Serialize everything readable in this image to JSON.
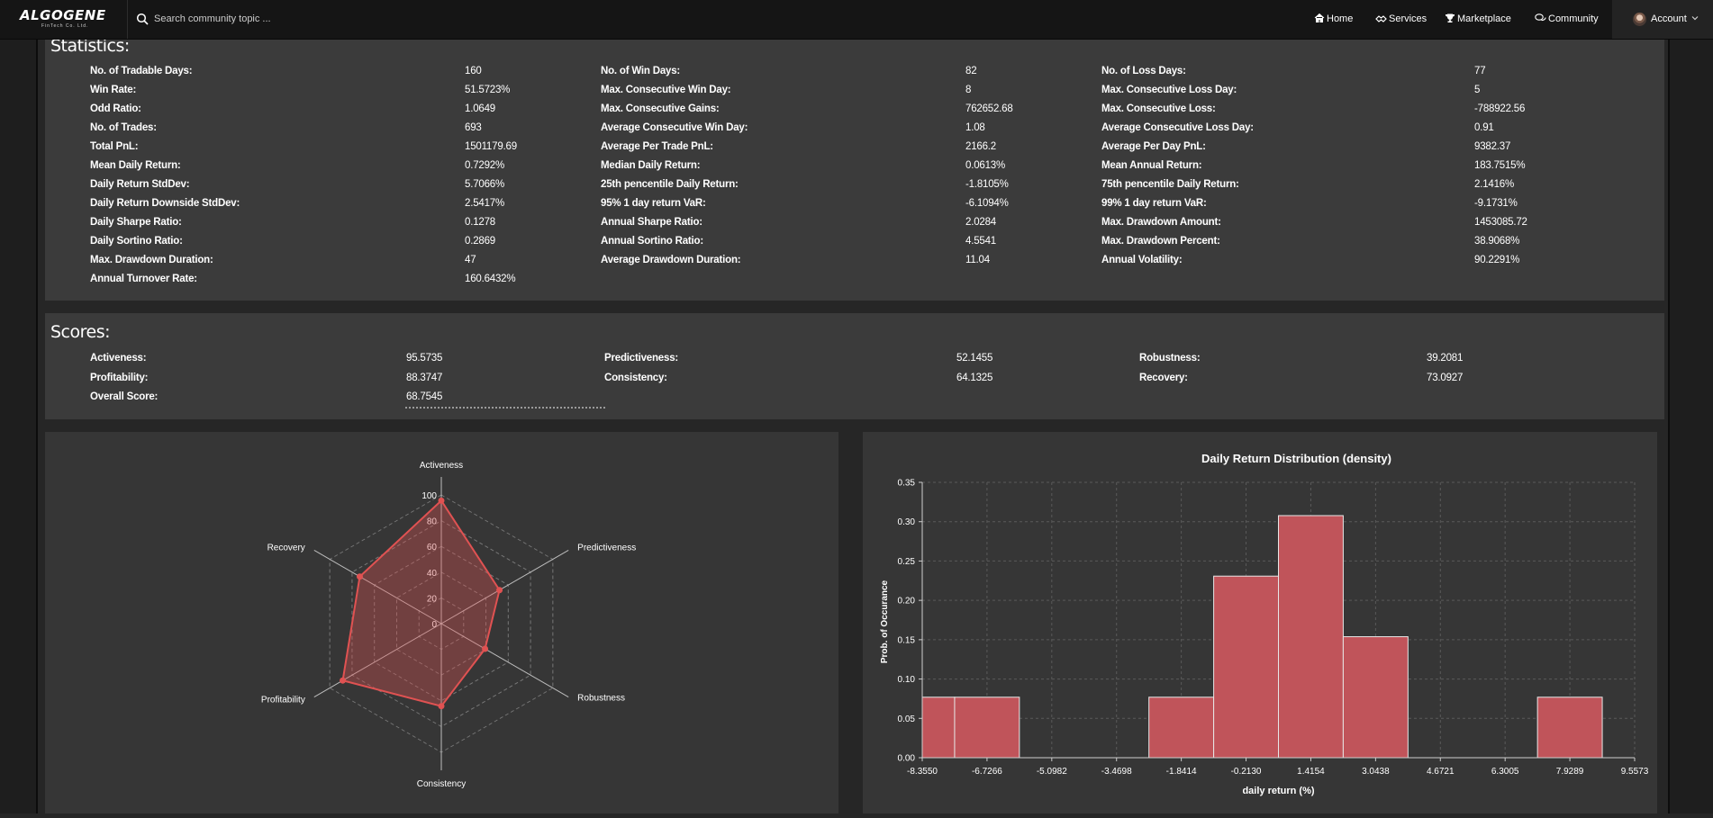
{
  "nav": {
    "logo": "ALGOGENE",
    "logo_subtitle": "FinTech Co. Ltd.",
    "search_placeholder": "Search community topic ...",
    "links": [
      {
        "label": "Home",
        "icon": "home-icon"
      },
      {
        "label": "Services",
        "icon": "services-icon"
      },
      {
        "label": "Marketplace",
        "icon": "trophy-icon"
      },
      {
        "label": "Community",
        "icon": "comments-icon"
      }
    ],
    "account_label": "Account"
  },
  "statistics": {
    "title": "Statistics:",
    "rows": [
      [
        [
          "No. of Tradable Days:",
          "160"
        ],
        [
          "No. of Win Days:",
          "82"
        ],
        [
          "No. of Loss Days:",
          "77"
        ]
      ],
      [
        [
          "Win Rate:",
          "51.5723%"
        ],
        [
          "Max. Consecutive Win Day:",
          "8"
        ],
        [
          "Max. Consecutive Loss Day:",
          "5"
        ]
      ],
      [
        [
          "Odd Ratio:",
          "1.0649"
        ],
        [
          "Max. Consecutive Gains:",
          "762652.68"
        ],
        [
          "Max. Consecutive Loss:",
          "-788922.56"
        ]
      ],
      [
        [
          "No. of Trades:",
          "693"
        ],
        [
          "Average Consecutive Win Day:",
          "1.08"
        ],
        [
          "Average Consecutive Loss Day:",
          "0.91"
        ]
      ],
      [
        [
          "Total PnL:",
          "1501179.69"
        ],
        [
          "Average Per Trade PnL:",
          "2166.2"
        ],
        [
          "Average Per Day PnL:",
          "9382.37"
        ]
      ],
      [
        [
          "Mean Daily Return:",
          "0.7292%"
        ],
        [
          "Median Daily Return:",
          "0.0613%"
        ],
        [
          "Mean Annual Return:",
          "183.7515%"
        ]
      ],
      [
        [
          "Daily Return StdDev:",
          "5.7066%"
        ],
        [
          "25th pencentile Daily Return:",
          "-1.8105%"
        ],
        [
          "75th pencentile Daily Return:",
          "2.1416%"
        ]
      ],
      [
        [
          "Daily Return Downside StdDev:",
          "2.5417%"
        ],
        [
          "95% 1 day return VaR:",
          "-6.1094%"
        ],
        [
          "99% 1 day return VaR:",
          "-9.1731%"
        ]
      ],
      [
        [
          "Daily Sharpe Ratio:",
          "0.1278"
        ],
        [
          "Annual Sharpe Ratio:",
          "2.0284"
        ],
        [
          "Max. Drawdown Amount:",
          "1453085.72"
        ]
      ],
      [
        [
          "Daily Sortino Ratio:",
          "0.2869"
        ],
        [
          "Annual Sortino Ratio:",
          "4.5541"
        ],
        [
          "Max. Drawdown Percent:",
          "38.9068%"
        ]
      ],
      [
        [
          "Max. Drawdown Duration:",
          "47"
        ],
        [
          "Average Drawdown Duration:",
          "11.04"
        ],
        [
          "Annual Volatility:",
          "90.2291%"
        ]
      ],
      [
        [
          "Annual Turnover Rate:",
          "160.6432%"
        ]
      ]
    ]
  },
  "scores": {
    "title": "Scores:",
    "rows": [
      [
        [
          "Activeness:",
          "95.5735"
        ],
        [
          "Predictiveness:",
          "52.1455"
        ],
        [
          "Robustness:",
          "39.2081"
        ]
      ],
      [
        [
          "Profitability:",
          "88.3747"
        ],
        [
          "Consistency:",
          "64.1325"
        ],
        [
          "Recovery:",
          "73.0927"
        ]
      ],
      [
        [
          "Overall Score:",
          "68.7545"
        ]
      ]
    ]
  },
  "chart_data": [
    {
      "type": "radar",
      "title": "",
      "axes": [
        "Activeness",
        "Predictiveness",
        "Robustness",
        "Consistency",
        "Profitability",
        "Recovery"
      ],
      "values": [
        95.5735,
        52.1455,
        39.2081,
        64.1325,
        88.3747,
        73.0927
      ],
      "rlim": [
        0,
        100
      ],
      "ticks": [
        "0",
        "20",
        "40",
        "60",
        "80",
        "100"
      ],
      "grid": true,
      "color": "#e05252"
    },
    {
      "type": "bar",
      "title": "Daily Return Distribution (density)",
      "xlabel": "daily return (%)",
      "ylabel": "Prob. of Occurance",
      "xlim": [
        -8.355,
        9.5573
      ],
      "ylim": [
        0,
        0.35
      ],
      "x_ticks": [
        "-8.3550",
        "-6.7266",
        "-5.0982",
        "-3.4698",
        "-1.8414",
        "-0.2130",
        "1.4154",
        "3.0438",
        "4.6721",
        "6.3005",
        "7.9289",
        "9.5573"
      ],
      "y_ticks": [
        "0.00",
        "0.05",
        "0.10",
        "0.15",
        "0.20",
        "0.25",
        "0.30",
        "0.35"
      ],
      "bins": [
        {
          "x0": -8.355,
          "x1": -7.5408,
          "y": 0.0769
        },
        {
          "x0": -7.5408,
          "x1": -5.9124,
          "y": 0.0769
        },
        {
          "x0": -4.284,
          "x1": -2.6556,
          "y": 0.0
        },
        {
          "x0": -2.6556,
          "x1": -1.0272,
          "y": 0.0769
        },
        {
          "x0": -1.0272,
          "x1": 0.6012,
          "y": 0.2308
        },
        {
          "x0": 0.6012,
          "x1": 2.2296,
          "y": 0.3077
        },
        {
          "x0": 2.2296,
          "x1": 3.858,
          "y": 0.1538
        },
        {
          "x0": 5.4863,
          "x1": 7.1147,
          "y": 0.0
        },
        {
          "x0": 7.1147,
          "x1": 8.7431,
          "y": 0.0769
        }
      ],
      "grid": true,
      "color": "#c0545a"
    }
  ]
}
